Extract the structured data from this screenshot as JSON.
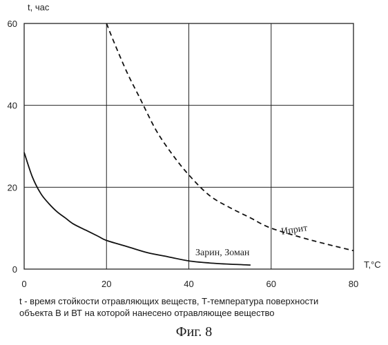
{
  "chart_data": {
    "type": "line",
    "ylabel": "t, час",
    "xlabel": "T,°C",
    "xlim": [
      0,
      80
    ],
    "ylim": [
      0,
      60
    ],
    "x_ticks": [
      "0",
      "20",
      "40",
      "60",
      "80"
    ],
    "y_ticks": [
      "0",
      "20",
      "40",
      "60"
    ],
    "grid": true,
    "series": [
      {
        "name": "Зарин, Зоман",
        "style": "solid",
        "x": [
          0,
          2,
          4,
          6,
          8,
          10,
          12,
          15,
          18,
          20,
          25,
          30,
          35,
          40,
          45,
          50,
          55
        ],
        "y": [
          28.5,
          22.5,
          18.5,
          16,
          14,
          12.5,
          11,
          9.5,
          8,
          7,
          5.5,
          4,
          3,
          2,
          1.5,
          1.2,
          1
        ]
      },
      {
        "name": "Иприт",
        "style": "dashed",
        "x": [
          20,
          22,
          25,
          28,
          32,
          36,
          40,
          45,
          50,
          55,
          60,
          70,
          80
        ],
        "y": [
          60,
          55,
          48,
          42,
          34,
          28,
          23,
          18,
          15,
          12.5,
          10,
          7,
          4.5
        ]
      }
    ]
  },
  "caption": {
    "line1": "t - время стойкости отравляющих веществ, Т-температура поверхности",
    "line2": "объекта В и ВТ на которой нанесено отравляющее вещество"
  },
  "figure_label": "Фиг. 8"
}
